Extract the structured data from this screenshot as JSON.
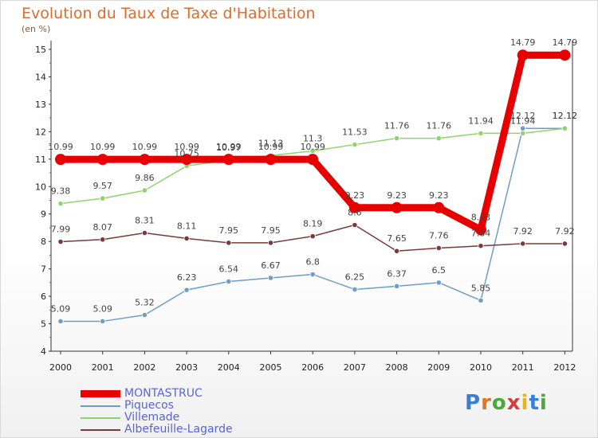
{
  "header": {
    "title": "Evolution du Taux de Taxe d'Habitation",
    "subtitle": "(en %)"
  },
  "logo": {
    "text": "Proxiti",
    "colors": [
      "#3a7fd5",
      "#e8731c",
      "#4aa83c",
      "#d93c3c",
      "#e8b41c",
      "#3a7fd5",
      "#4aa83c"
    ]
  },
  "chart_data": {
    "type": "line",
    "x": [
      2000,
      2001,
      2002,
      2003,
      2004,
      2005,
      2006,
      2007,
      2008,
      2009,
      2010,
      2011,
      2012
    ],
    "ylim": [
      4,
      15
    ],
    "yticks": [
      4,
      5,
      6,
      7,
      8,
      9,
      10,
      11,
      12,
      13,
      14,
      15
    ],
    "grid": false,
    "legend_position": "bottom-left",
    "series": [
      {
        "name": "MONTASTRUC",
        "color": "#e60000",
        "values": [
          10.99,
          10.99,
          10.99,
          10.99,
          10.99,
          10.99,
          10.99,
          9.23,
          9.23,
          9.23,
          8.43,
          14.79,
          14.79
        ],
        "labels": [
          "10.99",
          "10.99",
          "10.99",
          "10.99",
          "10.99",
          "10.99",
          "10.99",
          "9.23",
          "9.23",
          "9.23",
          "8.43",
          "14.79",
          "14.79"
        ]
      },
      {
        "name": "Piquecos",
        "color": "#6d9ec8",
        "values": [
          5.09,
          5.09,
          5.32,
          6.23,
          6.54,
          6.67,
          6.8,
          6.25,
          6.37,
          6.5,
          5.85,
          12.12,
          12.12
        ],
        "labels": [
          "5.09",
          "5.09",
          "5.32",
          "6.23",
          "6.54",
          "6.67",
          "6.8",
          "6.25",
          "6.37",
          "6.5",
          "5.85",
          "12.12",
          "12.12"
        ]
      },
      {
        "name": "Villemade",
        "color": "#8fd46a",
        "values": [
          9.38,
          9.57,
          9.86,
          10.75,
          10.97,
          11.13,
          11.3,
          11.53,
          11.76,
          11.76,
          11.94,
          11.94,
          12.12
        ],
        "labels": [
          "9.38",
          "9.57",
          "9.86",
          "10.75",
          "10.97",
          "11.13",
          "11.3",
          "11.53",
          "11.76",
          "11.76",
          "11.94",
          "11.94",
          "12.12"
        ]
      },
      {
        "name": "Albefeuille-Lagarde",
        "color": "#7a3a3a",
        "values": [
          7.99,
          8.07,
          8.31,
          8.11,
          7.95,
          7.95,
          8.19,
          8.6,
          7.65,
          7.76,
          7.84,
          7.92,
          7.92
        ],
        "labels": [
          "7.99",
          "8.07",
          "8.31",
          "8.11",
          "7.95",
          "7.95",
          "8.19",
          "8.6",
          "7.65",
          "7.76",
          "7.84",
          "7.92",
          "7.92"
        ]
      }
    ]
  }
}
